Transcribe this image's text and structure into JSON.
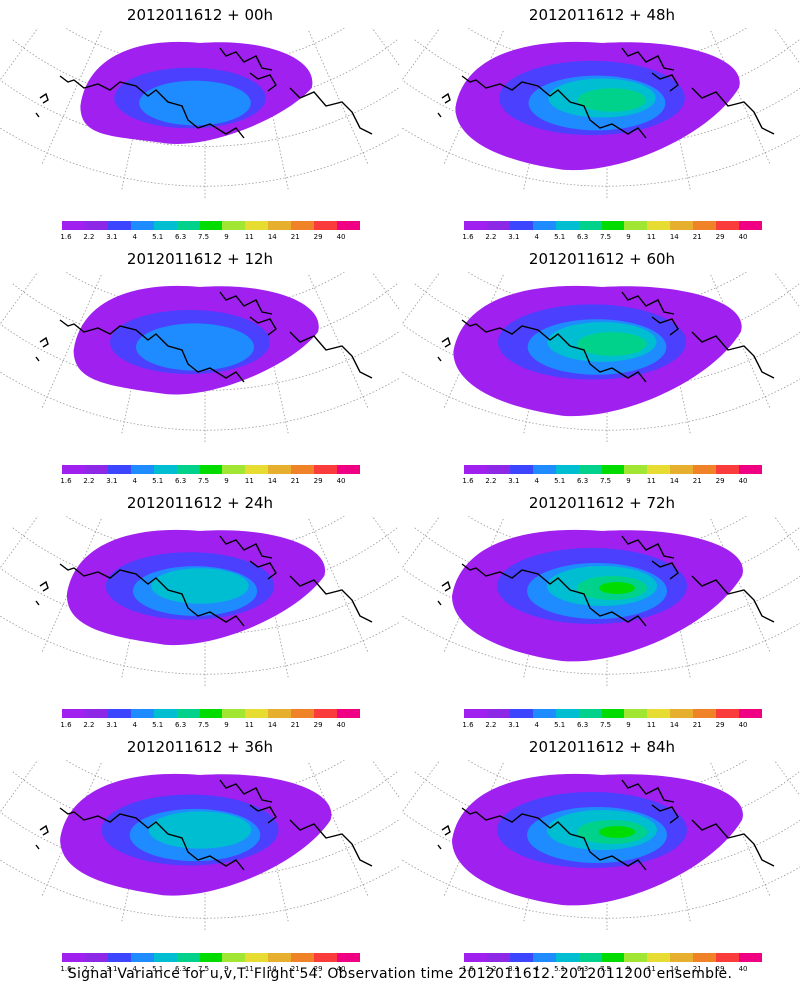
{
  "panels": [
    {
      "title": "2012011612 + 00h",
      "lead": "00h",
      "green_level": 1,
      "purple_extent": 0.55
    },
    {
      "title": "2012011612 + 48h",
      "lead": "48h",
      "green_level": 3,
      "purple_extent": 0.95
    },
    {
      "title": "2012011612 + 12h",
      "lead": "12h",
      "green_level": 1,
      "purple_extent": 0.65
    },
    {
      "title": "2012011612 + 60h",
      "lead": "60h",
      "green_level": 3,
      "purple_extent": 0.98
    },
    {
      "title": "2012011612 + 24h",
      "lead": "24h",
      "green_level": 2,
      "purple_extent": 0.75
    },
    {
      "title": "2012011612 + 72h",
      "lead": "72h",
      "green_level": 4,
      "purple_extent": 1.0
    },
    {
      "title": "2012011612 + 36h",
      "lead": "36h",
      "green_level": 2,
      "purple_extent": 0.85
    },
    {
      "title": "2012011612 + 84h",
      "lead": "84h",
      "green_level": 4,
      "purple_extent": 1.0
    }
  ],
  "colorbar": {
    "labels": [
      "1.6",
      "2.2",
      "3.1",
      "4",
      "5.1",
      "6.3",
      "7.5",
      "9",
      "11",
      "14",
      "21",
      "29",
      "40"
    ],
    "colors": [
      "#a020f0",
      "#8c28e6",
      "#3c46ff",
      "#1e8cff",
      "#00bed2",
      "#00d28c",
      "#00dc00",
      "#a0e632",
      "#e6dc32",
      "#e6af2d",
      "#f08228",
      "#fa3c3c",
      "#f00082"
    ]
  },
  "caption": "Signal Variance for u,v,T. Flight 54. Observation time 2012011612. 2012011200 ensemble."
}
